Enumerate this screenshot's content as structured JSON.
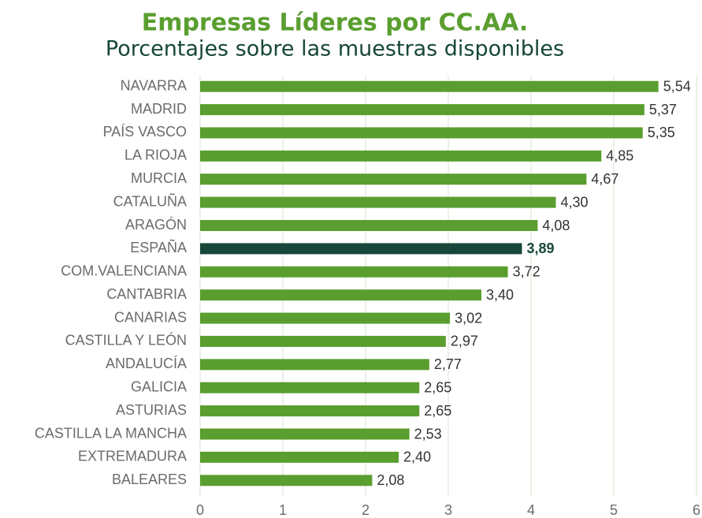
{
  "chart_data": {
    "type": "bar",
    "orientation": "horizontal",
    "title": "Empresas Líderes por CC.AA.",
    "subtitle": "Porcentajes sobre las muestras disponibles",
    "categories": [
      "NAVARRA",
      "MADRID",
      "PAÍS VASCO",
      "LA RIOJA",
      "MURCIA",
      "CATALUÑA",
      "ARAGÓN",
      "ESPAÑA",
      "COM.VALENCIANA",
      "CANTABRIA",
      "CANARIAS",
      "CASTILLA Y LEÓN",
      "ANDALUCÍA",
      "GALICIA",
      "ASTURIAS",
      "CASTILLA LA MANCHA",
      "EXTREMADURA",
      "BALEARES"
    ],
    "values": [
      5.54,
      5.37,
      5.35,
      4.85,
      4.67,
      4.3,
      4.08,
      3.89,
      3.72,
      3.4,
      3.02,
      2.97,
      2.77,
      2.65,
      2.65,
      2.53,
      2.4,
      2.08
    ],
    "value_labels": [
      "5,54",
      "5,37",
      "5,35",
      "4,85",
      "4,67",
      "4,30",
      "4,08",
      "3,89",
      "3,72",
      "3,40",
      "3,02",
      "2,97",
      "2,77",
      "2,65",
      "2,65",
      "2,53",
      "2,40",
      "2,08"
    ],
    "colors": [
      "#5a9e2f",
      "#5a9e2f",
      "#5a9e2f",
      "#5a9e2f",
      "#5a9e2f",
      "#5a9e2f",
      "#5a9e2f",
      "#17473a",
      "#5a9e2f",
      "#5a9e2f",
      "#5a9e2f",
      "#5a9e2f",
      "#5a9e2f",
      "#5a9e2f",
      "#5a9e2f",
      "#5a9e2f",
      "#5a9e2f",
      "#5a9e2f"
    ],
    "xlim": [
      0,
      6
    ],
    "xticks": [
      0,
      1,
      2,
      3,
      4,
      5,
      6
    ],
    "grid": true
  }
}
